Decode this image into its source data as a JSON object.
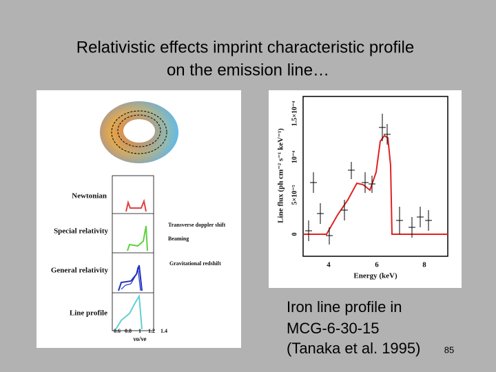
{
  "slide": {
    "title": [
      "Relativistic effects imprint characteristic profile",
      "on the emission line…"
    ],
    "caption": [
      "Iron line profile in",
      "MCG-6-30-15",
      "(Tanaka et al. 1995)"
    ],
    "page_number": "85"
  },
  "left_figure": {
    "panels": [
      "Newtonian",
      "Special relativity",
      "General relativity",
      "Line profile"
    ],
    "annotations": [
      "Transverse doppler shift",
      "Beaming",
      "Gravitational redshift"
    ],
    "x_ticks": [
      "0.6",
      "0.8",
      "1",
      "1.2",
      "1.4"
    ],
    "x_label": "νo/νe"
  },
  "right_figure": {
    "x_label": "Energy (keV)",
    "y_label": "Line flux (ph cm⁻² s⁻¹ keV⁻¹)",
    "x_ticks": [
      "4",
      "6",
      "8"
    ],
    "y_ticks": [
      "0",
      "5×10⁻⁵",
      "10⁻⁴",
      "1.5×10⁻⁴"
    ]
  }
}
